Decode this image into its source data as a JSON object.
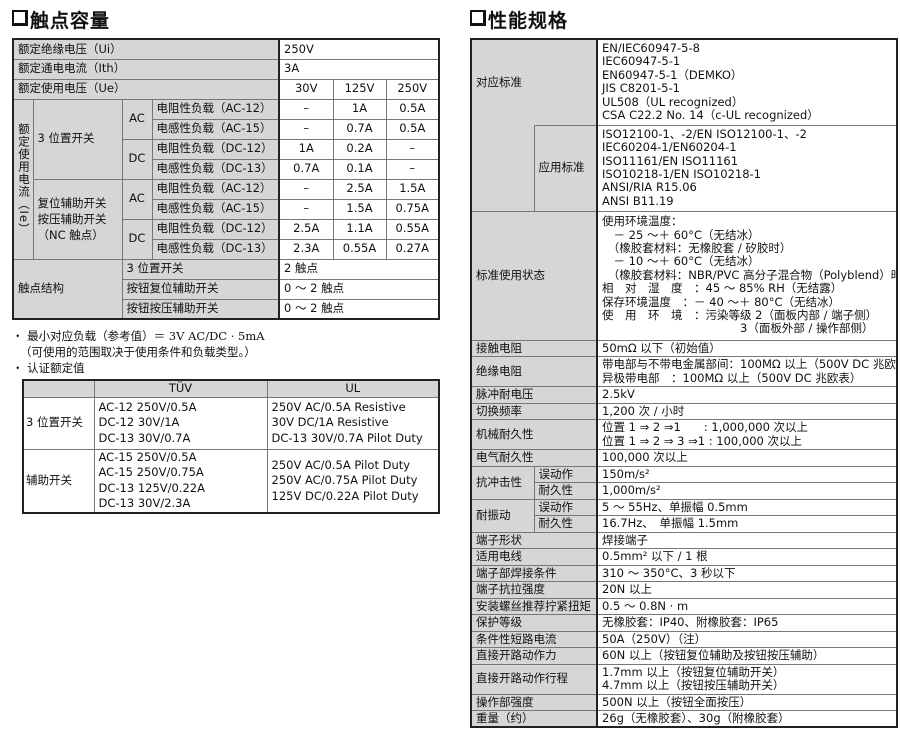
{
  "capacity": {
    "title": "触点容量",
    "ui_label": "额定绝缘电压（Ui）",
    "ui_value": "250V",
    "ith_label": "额定通电电流（Ith）",
    "ith_value": "3A",
    "ue_label": "额定使用电压（Ue）",
    "voltages": [
      "30V",
      "125V",
      "250V"
    ],
    "ie_label": "额定使用电流（Ie）",
    "groups": [
      {
        "name": "3 位置开关",
        "ac": "AC",
        "dc": "DC",
        "rows": [
          {
            "load": "电阻性负载（AC-12）",
            "v": [
              "–",
              "1A",
              "0.5A"
            ]
          },
          {
            "load": "电感性负载（AC-15）",
            "v": [
              "–",
              "0.7A",
              "0.5A"
            ]
          },
          {
            "load": "电阻性负载（DC-12）",
            "v": [
              "1A",
              "0.2A",
              "–"
            ]
          },
          {
            "load": "电感性负载（DC-13）",
            "v": [
              "0.7A",
              "0.1A",
              "–"
            ]
          }
        ]
      },
      {
        "name": [
          "复位辅助开关",
          "按压辅助开关",
          "（NC 触点）"
        ],
        "ac": "AC",
        "dc": "DC",
        "rows": [
          {
            "load": "电阻性负载（AC-12）",
            "v": [
              "–",
              "2.5A",
              "1.5A"
            ]
          },
          {
            "load": "电感性负载（AC-15）",
            "v": [
              "–",
              "1.5A",
              "0.75A"
            ]
          },
          {
            "load": "电阻性负载（DC-12）",
            "v": [
              "2.5A",
              "1.1A",
              "0.55A"
            ]
          },
          {
            "load": "电感性负载（DC-13）",
            "v": [
              "2.3A",
              "0.55A",
              "0.27A"
            ]
          }
        ]
      }
    ],
    "structure_label": "触点结构",
    "structure": [
      {
        "type": "3 位置开关",
        "value": "2 触点"
      },
      {
        "type": "按钮复位辅助开关",
        "value": "0 ～ 2 触点"
      },
      {
        "type": "按钮按压辅助开关",
        "value": "0 ～ 2 触点"
      }
    ]
  },
  "notes": [
    "・ 最小对应负载（参考值）＝ 3V AC/DC · 5mA",
    "（可使用的范围取决于使用条件和负载类型。）",
    "・ 认证额定值"
  ],
  "cert": {
    "headers": [
      "",
      "TÜV",
      "UL"
    ],
    "rows": [
      {
        "name": "3 位置开关",
        "tuv": [
          "AC-12 250V/0.5A",
          "DC-12 30V/1A",
          "DC-13 30V/0.7A"
        ],
        "ul": [
          "250V AC/0.5A Resistive",
          "30V DC/1A Resistive",
          "DC-13 30V/0.7A Pilot Duty"
        ]
      },
      {
        "name": "辅助开关",
        "tuv": [
          "AC-15 250V/0.5A",
          "AC-15 250V/0.75A",
          "DC-13 125V/0.22A",
          "DC-13 30V/2.3A"
        ],
        "ul": [
          "250V AC/0.5A Pilot Duty",
          "250V AC/0.75A Pilot Duty",
          "125V DC/0.22A Pilot Duty"
        ]
      }
    ]
  },
  "spec": {
    "title": "性能规格",
    "standards_label": "对应标准",
    "standards": [
      "EN/IEC60947-5-8",
      "IEC60947-5-1",
      "EN60947-5-1（DEMKO）",
      "JIS C8201-5-1",
      "UL508（UL recognized）",
      "CSA C22.2 No. 14（c-UL recognized）"
    ],
    "app_label": "应用标准",
    "app": [
      "ISO12100-1、-2/EN ISO12100-1、-2",
      "IEC60204-1/EN60204-1",
      "ISO11161/EN ISO11161",
      "ISO10218-1/EN ISO10218-1",
      "ANSI/RIA R15.06",
      "ANSI B11.19"
    ],
    "env_label": "标准使用状态",
    "env": [
      "使用环境温度：",
      "　－ 25 ～＋ 60°C（无结冰）",
      "　（橡胶套材料：无橡胶套 / 矽胶时）",
      "　－ 10 ～＋ 60°C（无结冰）",
      "　（橡胶套材料：NBR/PVC 高分子混合物（Polyblend）时）",
      "相　对　湿　度　：45 ～ 85% RH（无结露）",
      "保存环境温度　：－ 40 ～＋ 80°C（无结冰）",
      "使　用　环　境　：污染等级 2（面板内部 / 端子侧）",
      "　　　　　　　　　　　　3（面板外部 / 操作部侧）"
    ],
    "rows1": [
      {
        "label": "接触电阻",
        "value": [
          "50mΩ 以下（初始值）"
        ]
      },
      {
        "label": "绝缘电阻",
        "value": [
          "带电部与不带电金属部间：100MΩ 以上（500V DC 兆欧表）",
          "异极带电部　：100MΩ 以上（500V DC 兆欧表）"
        ]
      },
      {
        "label": "脉冲耐电压",
        "value": [
          "2.5kV"
        ]
      },
      {
        "label": "切换频率",
        "value": [
          "1,200 次 / 小时"
        ]
      },
      {
        "label": "机械耐久性",
        "value": [
          "位置 1 ⇒ 2 ⇒1　　: 1,000,000 次以上",
          "位置 1 ⇒ 2 ⇒ 3 ⇒1 : 100,000 次以上"
        ]
      },
      {
        "label": "电气耐久性",
        "value": [
          "100,000 次以上"
        ]
      }
    ],
    "shock": {
      "label": "抗冲击性",
      "sub": [
        {
          "label": "误动作",
          "value": "150m/s²"
        },
        {
          "label": "耐久性",
          "value": "1,000m/s²"
        }
      ]
    },
    "vib": {
      "label": "耐振动",
      "sub": [
        {
          "label": "误动作",
          "value": "5 ～ 55Hz、单振幅 0.5mm"
        },
        {
          "label": "耐久性",
          "value": "16.7Hz、　单振幅 1.5mm"
        }
      ]
    },
    "rows2": [
      {
        "label": "端子形状",
        "value": [
          "焊接端子"
        ]
      },
      {
        "label": "适用电线",
        "value": [
          "0.5mm² 以下 / 1 根"
        ]
      },
      {
        "label": "端子部焊接条件",
        "value": [
          "310 ～ 350°C、3 秒以下"
        ]
      },
      {
        "label": "端子抗拉强度",
        "value": [
          "20N 以上"
        ]
      },
      {
        "label": "安装螺丝推荐拧紧扭矩",
        "value": [
          "0.5 ～ 0.8N · m"
        ]
      },
      {
        "label": "保护等级",
        "value": [
          "无橡胶套：IP40、附橡胶套：IP65"
        ]
      },
      {
        "label": "条件性短路电流",
        "value": [
          "50A（250V）（注）"
        ]
      },
      {
        "label": "直接开路动作力",
        "value": [
          "60N 以上（按钮复位辅助及按钮按压辅助）"
        ]
      },
      {
        "label": "直接开路动作行程",
        "value": [
          "1.7mm 以上（按钮复位辅助开关）",
          "4.7mm 以上（按钮按压辅助开关）"
        ]
      },
      {
        "label": "操作部强度",
        "value": [
          "500N 以上（按钮全面按压）"
        ]
      },
      {
        "label": "重量（约）",
        "value": [
          "26g（无橡胶套）、30g（附橡胶套）"
        ]
      }
    ]
  }
}
